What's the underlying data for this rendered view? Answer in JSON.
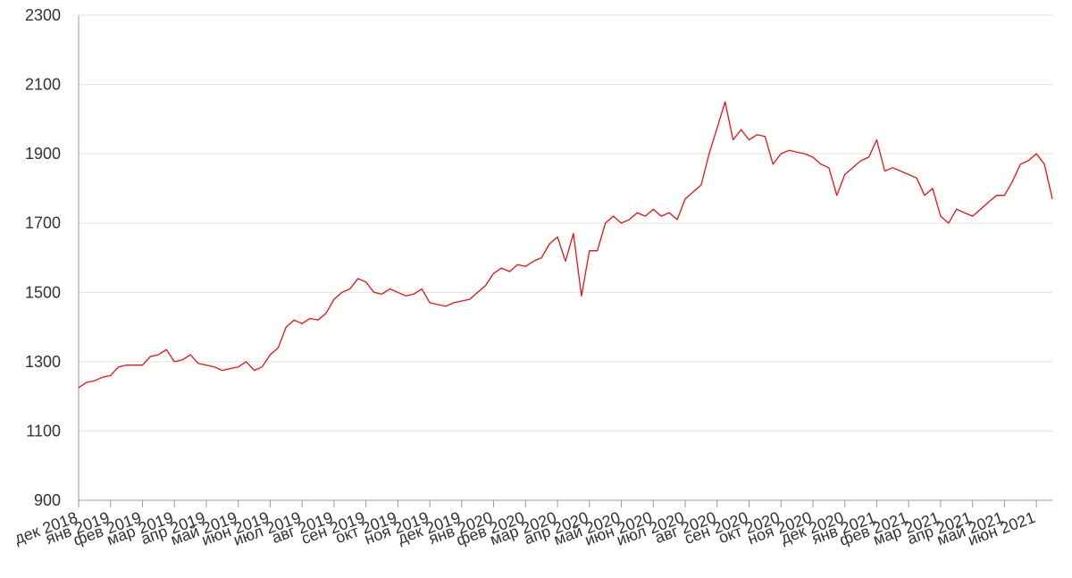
{
  "chart_data": {
    "type": "line",
    "categories": [
      "дек 2018",
      null,
      null,
      null,
      "янв 2019",
      null,
      null,
      null,
      "фев 2019",
      null,
      null,
      null,
      "мар 2019",
      null,
      null,
      null,
      "апр 2019",
      null,
      null,
      null,
      "май 2019",
      null,
      null,
      null,
      "июн 2019",
      null,
      null,
      null,
      "июл 2019",
      null,
      null,
      null,
      "авг 2019",
      null,
      null,
      null,
      "сен 2019",
      null,
      null,
      null,
      "окт 2019",
      null,
      null,
      null,
      "ноя 2019",
      null,
      null,
      null,
      "дек 2019",
      null,
      null,
      null,
      "янв 2020",
      null,
      null,
      null,
      "фев 2020",
      null,
      null,
      null,
      "мар 2020",
      null,
      null,
      null,
      "апр 2020",
      null,
      null,
      null,
      "май 2020",
      null,
      null,
      null,
      "июн 2020",
      null,
      null,
      null,
      "июл 2020",
      null,
      null,
      null,
      "авг 2020",
      null,
      null,
      null,
      "сен 2020",
      null,
      null,
      null,
      "окт 2020",
      null,
      null,
      null,
      "ноя 2020",
      null,
      null,
      null,
      "дек 2020",
      null,
      null,
      null,
      "янв 2021",
      null,
      null,
      null,
      "фев 2021",
      null,
      null,
      null,
      "мар 2021",
      null,
      null,
      null,
      "апр 2021",
      null,
      null,
      null,
      "май 2021",
      null,
      null,
      null,
      "июн 2021",
      null,
      null
    ],
    "series": [
      {
        "color": "#ee1111",
        "values": [
          1225,
          1240,
          1245,
          1255,
          1260,
          1285,
          1290,
          1290,
          1290,
          1315,
          1320,
          1335,
          1300,
          1305,
          1320,
          1295,
          1290,
          1285,
          1275,
          1280,
          1285,
          1300,
          1275,
          1285,
          1320,
          1340,
          1400,
          1420,
          1410,
          1425,
          1420,
          1440,
          1480,
          1500,
          1510,
          1540,
          1530,
          1500,
          1495,
          1510,
          1500,
          1490,
          1495,
          1510,
          1470,
          1465,
          1460,
          1470,
          1475,
          1480,
          1500,
          1520,
          1555,
          1570,
          1560,
          1580,
          1575,
          1590,
          1600,
          1640,
          1660,
          1590,
          1670,
          1490,
          1620,
          1620,
          1700,
          1720,
          1700,
          1710,
          1730,
          1720,
          1740,
          1720,
          1730,
          1710,
          1770,
          1790,
          1810,
          1900,
          1975,
          2050,
          1940,
          1970,
          1940,
          1955,
          1950,
          1870,
          1900,
          1910,
          1905,
          1900,
          1890,
          1870,
          1860,
          1780,
          1840,
          1860,
          1880,
          1890,
          1940,
          1850,
          1860,
          1850,
          1840,
          1830,
          1780,
          1800,
          1720,
          1700,
          1740,
          1730,
          1720,
          1740,
          1760,
          1780,
          1780,
          1820,
          1870,
          1880,
          1900,
          1870,
          1770
        ]
      }
    ],
    "ylim": [
      900,
      2300
    ],
    "yticks": [
      900,
      1100,
      1300,
      1500,
      1700,
      1900,
      2100,
      2300
    ],
    "grid": true
  }
}
